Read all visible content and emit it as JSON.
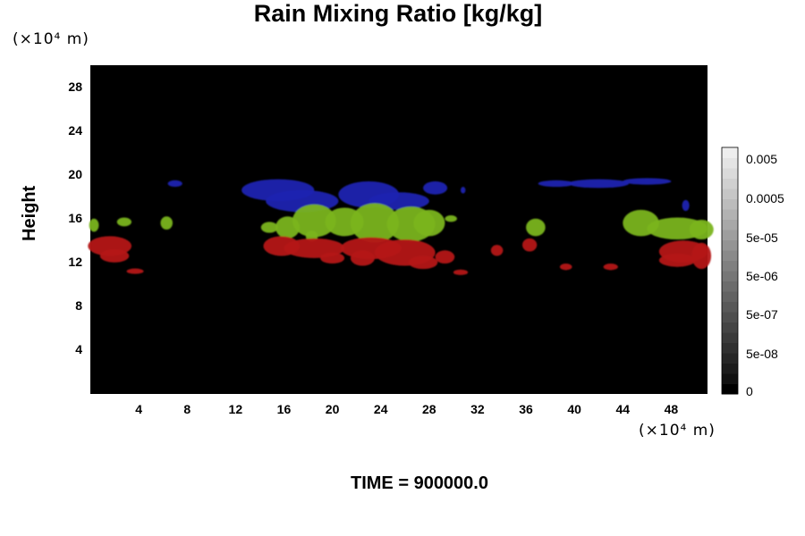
{
  "chart_data": {
    "type": "heatmap",
    "title": "Rain Mixing Ratio [kg/kg]",
    "ylabel": "Height",
    "y_unit": "(×10⁴ m)",
    "x_unit": "(×10⁴ m)",
    "xlim": [
      0,
      51
    ],
    "ylim": [
      0,
      30
    ],
    "x_ticks": [
      4,
      8,
      12,
      16,
      20,
      24,
      28,
      32,
      36,
      40,
      44,
      48
    ],
    "y_ticks": [
      4,
      8,
      12,
      16,
      20,
      24,
      28
    ],
    "colorbar": {
      "labels": [
        "0",
        "5e-08",
        "5e-07",
        "5e-06",
        "5e-05",
        "0.0005",
        "0.005"
      ],
      "colors": [
        "#000000",
        "#111111",
        "#1c1c1c",
        "#262626",
        "#303030",
        "#3a3a3a",
        "#444444",
        "#4e4e4e",
        "#585858",
        "#626262",
        "#6c6c6c",
        "#767676",
        "#808080",
        "#8a8a8a",
        "#949494",
        "#9e9e9e",
        "#a8a8a8",
        "#b2b2b2",
        "#bcbcbc",
        "#c6c6c6",
        "#d0d0d0",
        "#dadada",
        "#e4e4e4",
        "#eeeeee"
      ]
    },
    "regions": [
      {
        "level": "high",
        "color": "#1e22b0",
        "blobs": [
          [
            15.5,
            18.6,
            3,
            1.0
          ],
          [
            17.5,
            17.6,
            3,
            1.0
          ],
          [
            23,
            18.2,
            2.5,
            1.2
          ],
          [
            25.5,
            17.6,
            2.5,
            0.8
          ],
          [
            28.5,
            18.8,
            1,
            0.6
          ],
          [
            7,
            19.2,
            0.6,
            0.3
          ],
          [
            38.5,
            19.2,
            1.5,
            0.3
          ],
          [
            42,
            19.2,
            2.5,
            0.4
          ],
          [
            46,
            19.4,
            2,
            0.3
          ],
          [
            30.8,
            18.6,
            0.2,
            0.3
          ],
          [
            49.2,
            17.2,
            0.3,
            0.5
          ]
        ]
      },
      {
        "level": "mid",
        "color": "#7ab41e",
        "blobs": [
          [
            0.3,
            15.4,
            0.4,
            0.6
          ],
          [
            2.8,
            15.7,
            0.6,
            0.4
          ],
          [
            6.3,
            15.6,
            0.5,
            0.6
          ],
          [
            14.8,
            15.2,
            0.7,
            0.5
          ],
          [
            16.3,
            15.2,
            1,
            1.0
          ],
          [
            18.5,
            15.8,
            1.8,
            1.5
          ],
          [
            21,
            15.7,
            1.6,
            1.3
          ],
          [
            23.5,
            15.6,
            2,
            1.8
          ],
          [
            26.5,
            15.5,
            2,
            1.6
          ],
          [
            28,
            15.6,
            1.3,
            1.2
          ],
          [
            18.3,
            14.4,
            0.5,
            0.5
          ],
          [
            29.8,
            16.0,
            0.5,
            0.3
          ],
          [
            36.8,
            15.2,
            0.8,
            0.8
          ],
          [
            45.5,
            15.6,
            1.5,
            1.2
          ],
          [
            48.5,
            15.1,
            2.5,
            1.0
          ],
          [
            50.5,
            15.0,
            1,
            0.9
          ]
        ]
      },
      {
        "level": "low",
        "color": "#b41414",
        "blobs": [
          [
            1.6,
            13.5,
            1.8,
            0.9
          ],
          [
            2,
            12.6,
            1.2,
            0.6
          ],
          [
            3.7,
            11.2,
            0.7,
            0.25
          ],
          [
            15.8,
            13.5,
            1.5,
            0.9
          ],
          [
            18.5,
            13.3,
            2.5,
            0.9
          ],
          [
            20,
            12.4,
            1,
            0.5
          ],
          [
            23.2,
            13.3,
            2.5,
            1.0
          ],
          [
            22.5,
            12.4,
            1,
            0.7
          ],
          [
            26,
            12.9,
            2.5,
            1.2
          ],
          [
            27.5,
            12.0,
            1.2,
            0.6
          ],
          [
            29.3,
            12.5,
            0.8,
            0.6
          ],
          [
            30.6,
            11.1,
            0.6,
            0.25
          ],
          [
            33.6,
            13.1,
            0.5,
            0.5
          ],
          [
            36.3,
            13.6,
            0.6,
            0.6
          ],
          [
            39.3,
            11.6,
            0.5,
            0.3
          ],
          [
            43,
            11.6,
            0.6,
            0.3
          ],
          [
            49,
            13.0,
            2,
            1.0
          ],
          [
            48.5,
            12.2,
            1.5,
            0.6
          ],
          [
            50.5,
            12.6,
            0.8,
            1.2
          ]
        ]
      }
    ],
    "grid": false,
    "background": "#000000"
  },
  "footer": "TIME = 900000.0"
}
